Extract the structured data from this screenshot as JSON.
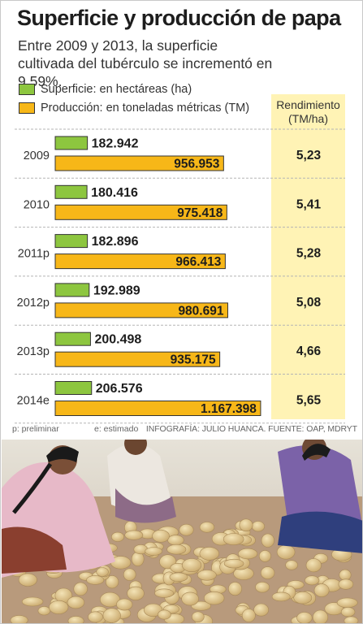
{
  "title": "Superficie y producción de papa",
  "subtitle": "Entre 2009 y 2013, la superficie cultivada del tubérculo se incrementó en 9,59%.",
  "legend": {
    "superficie": "Superficie: en hectáreas (ha)",
    "produccion": "Producción: en toneladas métricas (TM)"
  },
  "rendimiento_header": {
    "line1": "Rendimiento",
    "line2": "(TM/ha)"
  },
  "colors": {
    "superficie": "#8dc63f",
    "produccion": "#f7b718",
    "rendimiento_bg": "#fff3b5",
    "divider": "#b5b5b5"
  },
  "notes": {
    "preliminar": "p: preliminar",
    "estimado": "e: estimado",
    "credit": "INFOGRAFÍA: JULIO HUANCA. FUENTE: OAP, MDRYT"
  },
  "photo": {
    "icon": "potato-harvest-photo"
  },
  "chart_data": {
    "type": "bar",
    "orientation": "horizontal",
    "categories": [
      "2009",
      "2010",
      "2011p",
      "2012p",
      "2013p",
      "2014e"
    ],
    "series": [
      {
        "name": "Superficie: en hectáreas (ha)",
        "values": [
          182942,
          180416,
          182896,
          192989,
          200498,
          206576
        ],
        "labels": [
          "182.942",
          "180.416",
          "182.896",
          "192.989",
          "200.498",
          "206.576"
        ]
      },
      {
        "name": "Producción: en toneladas métricas (TM)",
        "values": [
          956953,
          975418,
          966413,
          980691,
          935175,
          1167398
        ],
        "labels": [
          "956.953",
          "975.418",
          "966.413",
          "980.691",
          "935.175",
          "1.167.398"
        ]
      }
    ],
    "rendimiento": {
      "values": [
        5.23,
        5.41,
        5.28,
        5.08,
        4.66,
        5.65
      ],
      "labels": [
        "5,23",
        "5,41",
        "5,28",
        "5,08",
        "4,66",
        "5,65"
      ]
    }
  }
}
